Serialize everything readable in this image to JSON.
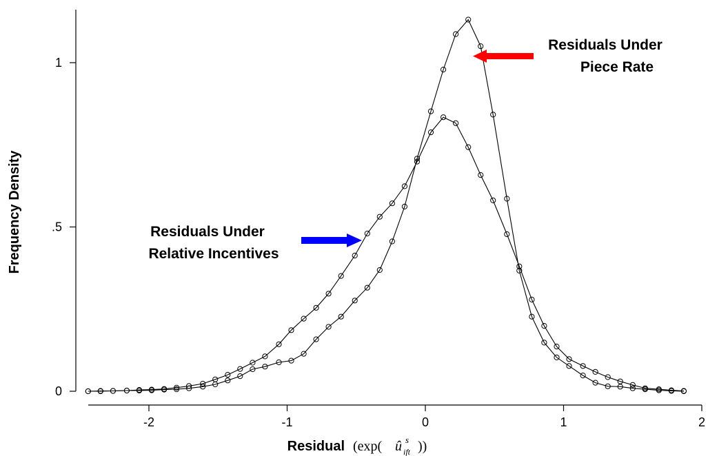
{
  "chart_data": {
    "type": "line",
    "title": "",
    "xlabel": "Residual",
    "xlabel_math": {
      "open": "(exp(",
      "symbol": "û",
      "superscript": "s",
      "subscript": "ift",
      "close": "))"
    },
    "ylabel": "Frequency Density",
    "xlim": [
      -2.5,
      2.05
    ],
    "ylim": [
      0,
      1.15
    ],
    "x_ticks": [
      {
        "value": -2,
        "label": "-2"
      },
      {
        "value": -1,
        "label": "-1"
      },
      {
        "value": 0,
        "label": "0"
      },
      {
        "value": 1,
        "label": "1"
      },
      {
        "value": 2,
        "label": "2"
      }
    ],
    "y_ticks": [
      {
        "value": 0,
        "label": "0"
      },
      {
        "value": 0.5,
        "label": ".5"
      },
      {
        "value": 1,
        "label": "1"
      }
    ],
    "grid": false,
    "marker": "hollow-circle",
    "series": [
      {
        "x": [
          -2.44,
          -2.35,
          -2.26,
          -2.16,
          -2.07,
          -1.98,
          -1.89,
          -1.8,
          -1.71,
          -1.61,
          -1.52,
          -1.43,
          -1.34,
          -1.25,
          -1.16,
          -1.06,
          -0.97,
          -0.88,
          -0.79,
          -0.7,
          -0.61,
          -0.51,
          -0.42,
          -0.33,
          -0.24,
          -0.15,
          -0.06,
          0.04,
          0.13,
          0.22,
          0.31,
          0.4,
          0.49,
          0.59,
          0.68,
          0.77,
          0.86,
          0.95,
          1.04,
          1.14,
          1.23,
          1.32,
          1.41,
          1.5,
          1.59,
          1.69,
          1.78,
          1.87
        ],
        "y": [
          0.0,
          0.0,
          0.001,
          0.002,
          0.004,
          0.005,
          0.007,
          0.011,
          0.016,
          0.023,
          0.036,
          0.05,
          0.068,
          0.087,
          0.106,
          0.143,
          0.186,
          0.221,
          0.254,
          0.297,
          0.351,
          0.413,
          0.48,
          0.531,
          0.572,
          0.624,
          0.699,
          0.788,
          0.834,
          0.816,
          0.743,
          0.658,
          0.581,
          0.478,
          0.38,
          0.279,
          0.199,
          0.136,
          0.098,
          0.077,
          0.059,
          0.043,
          0.03,
          0.019,
          0.009,
          0.006,
          0.003,
          0.001
        ]
      },
      {
        "x": [
          -2.44,
          -2.35,
          -2.26,
          -2.16,
          -2.07,
          -1.98,
          -1.89,
          -1.8,
          -1.71,
          -1.61,
          -1.52,
          -1.43,
          -1.34,
          -1.25,
          -1.16,
          -1.06,
          -0.97,
          -0.88,
          -0.79,
          -0.7,
          -0.61,
          -0.51,
          -0.42,
          -0.33,
          -0.24,
          -0.15,
          -0.06,
          0.04,
          0.13,
          0.22,
          0.31,
          0.4,
          0.49,
          0.59,
          0.68,
          0.77,
          0.86,
          0.95,
          1.04,
          1.14,
          1.23,
          1.32,
          1.41,
          1.5,
          1.59,
          1.69,
          1.78,
          1.87
        ],
        "y": [
          0.0,
          0.001,
          0.001,
          0.002,
          0.002,
          0.003,
          0.005,
          0.006,
          0.009,
          0.014,
          0.021,
          0.033,
          0.046,
          0.067,
          0.075,
          0.088,
          0.093,
          0.114,
          0.158,
          0.196,
          0.227,
          0.276,
          0.315,
          0.369,
          0.456,
          0.562,
          0.708,
          0.852,
          0.979,
          1.087,
          1.131,
          1.05,
          0.842,
          0.586,
          0.367,
          0.227,
          0.148,
          0.103,
          0.077,
          0.048,
          0.026,
          0.015,
          0.014,
          0.009,
          0.006,
          0.003,
          0.001,
          0.0
        ]
      }
    ],
    "annotations": [
      {
        "lines": [
          "Residuals Under",
          "Piece Rate"
        ],
        "arrow_color": "#ff0000"
      },
      {
        "lines": [
          "Residuals Under",
          "Relative Incentives"
        ],
        "arrow_color": "#0000ff"
      }
    ]
  }
}
